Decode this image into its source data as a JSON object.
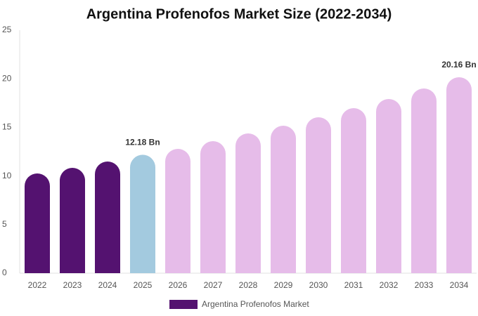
{
  "chart_data": {
    "type": "bar",
    "title": "Argentina Profenofos Market Size (2022-2034)",
    "categories": [
      "2022",
      "2023",
      "2024",
      "2025",
      "2026",
      "2027",
      "2028",
      "2029",
      "2030",
      "2031",
      "2032",
      "2033",
      "2034"
    ],
    "series": [
      {
        "name": "Argentina Profenofos Market",
        "color": "#541270",
        "colors": [
          "#541270",
          "#541270",
          "#541270",
          "#a3cadf",
          "#e6bce9",
          "#e6bce9",
          "#e6bce9",
          "#e6bce9",
          "#e6bce9",
          "#e6bce9",
          "#e6bce9",
          "#e6bce9",
          "#e6bce9"
        ],
        "values": [
          10.26,
          10.84,
          11.49,
          12.18,
          12.79,
          13.58,
          14.38,
          15.17,
          16.04,
          16.98,
          17.92,
          19.0,
          20.16
        ],
        "value_labels": [
          null,
          null,
          null,
          "12.18 Bn",
          null,
          null,
          null,
          null,
          null,
          null,
          null,
          null,
          "20.16 Bn"
        ]
      }
    ],
    "ylim": [
      0,
      25
    ],
    "yticks": [
      0,
      5,
      10,
      15,
      20,
      25
    ],
    "grid": false
  }
}
